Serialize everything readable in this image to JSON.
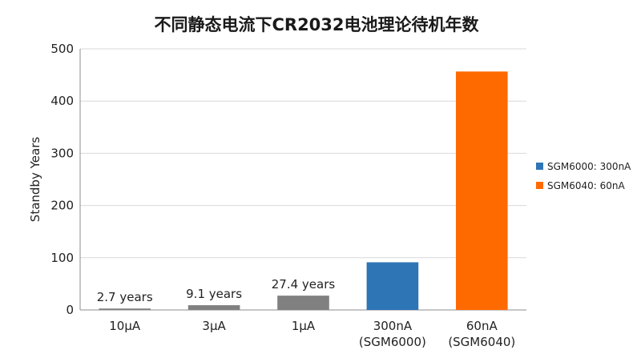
{
  "chart_data": {
    "type": "bar",
    "title": "不同静态电流下CR2032电池理论待机年数",
    "xlabel": "",
    "ylabel": "Standby Years",
    "ylim": [
      0,
      500
    ],
    "yticks": [
      0,
      100,
      200,
      300,
      400,
      500
    ],
    "grid": true,
    "legend_position": "right",
    "categories": [
      [
        "10μA"
      ],
      [
        "3μA"
      ],
      [
        "1μA"
      ],
      [
        "300nA",
        "(SGM6000)"
      ],
      [
        "60nA",
        "(SGM6040)"
      ]
    ],
    "values": [
      2.7,
      9.1,
      27.4,
      91.3,
      456.6
    ],
    "data_labels": [
      "2.7 years",
      "9.1 years",
      "27.4 years",
      "",
      ""
    ],
    "bar_colors": [
      "#808080",
      "#808080",
      "#808080",
      "#2E75B6",
      "#FF6A00"
    ],
    "legend": [
      {
        "label": "SGM6000: 300nA",
        "color": "#2E75B6"
      },
      {
        "label": "SGM6040: 60nA",
        "color": "#FF6A00"
      }
    ]
  }
}
